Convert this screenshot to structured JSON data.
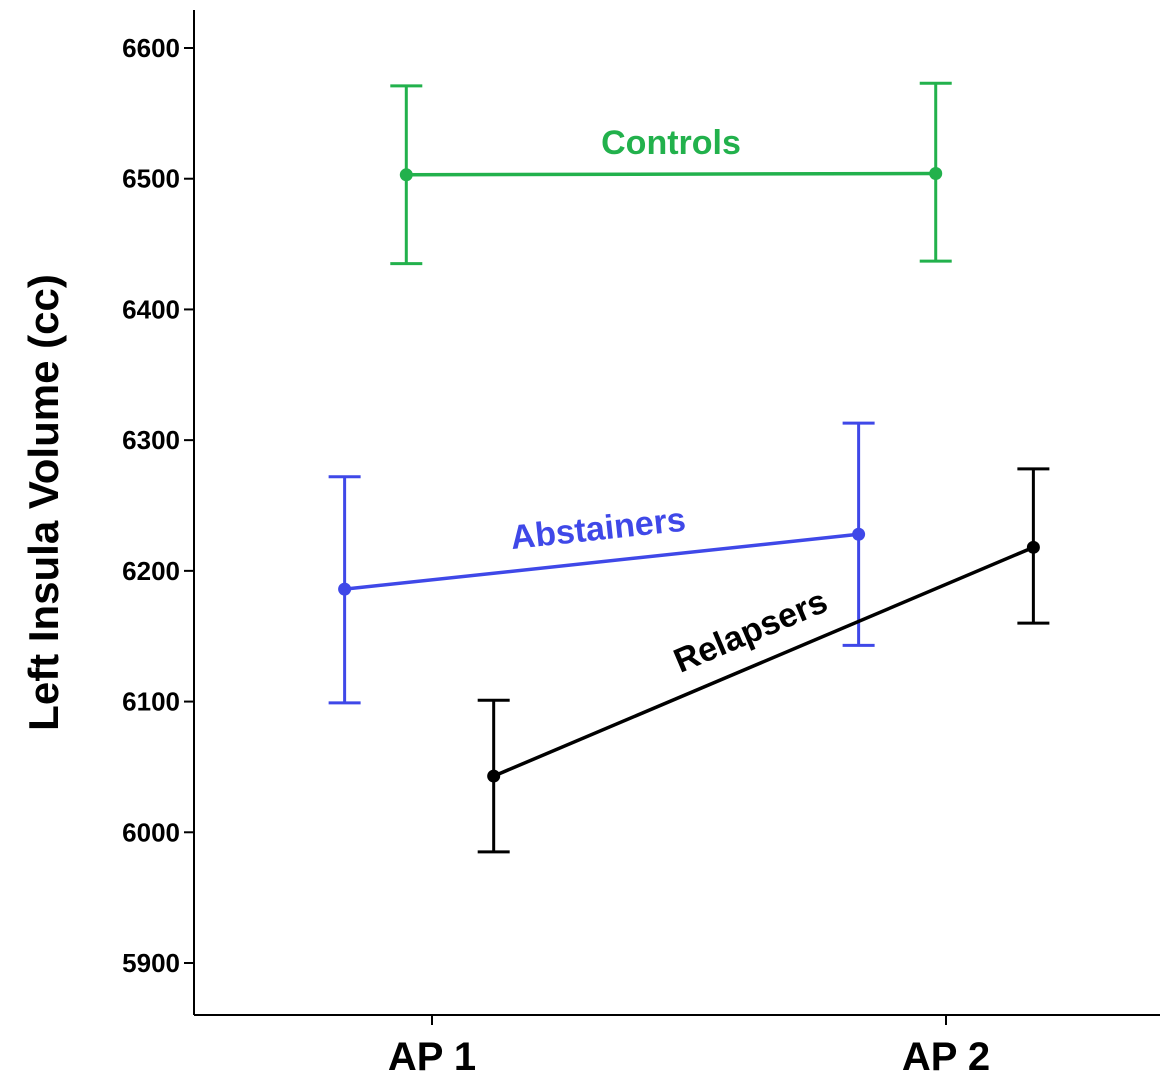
{
  "chart_data": {
    "type": "line",
    "title": "",
    "xlabel": "",
    "ylabel": "Left Insula Volume (cc)",
    "categories": [
      "AP 1",
      "AP 2"
    ],
    "ylim": [
      5860,
      6625
    ],
    "yticks": [
      5900,
      6000,
      6100,
      6200,
      6300,
      6400,
      6500,
      6600
    ],
    "grid": false,
    "legend": "none",
    "series": [
      {
        "name": "Controls",
        "color": "#22b14c",
        "x": [
          -0.05,
          0.98
        ],
        "values": [
          6503,
          6504
        ],
        "error_low": [
          6435,
          6437
        ],
        "error_high": [
          6571,
          6573
        ]
      },
      {
        "name": "Abstainers",
        "color": "#3f48e8",
        "x": [
          -0.17,
          0.83
        ],
        "values": [
          6186,
          6228
        ],
        "error_low": [
          6099,
          6143
        ],
        "error_high": [
          6272,
          6313
        ]
      },
      {
        "name": "Relapsers",
        "color": "#000000",
        "x": [
          0.12,
          1.17
        ],
        "values": [
          6043,
          6218
        ],
        "error_low": [
          5985,
          6160
        ],
        "error_high": [
          6101,
          6278
        ]
      }
    ]
  }
}
